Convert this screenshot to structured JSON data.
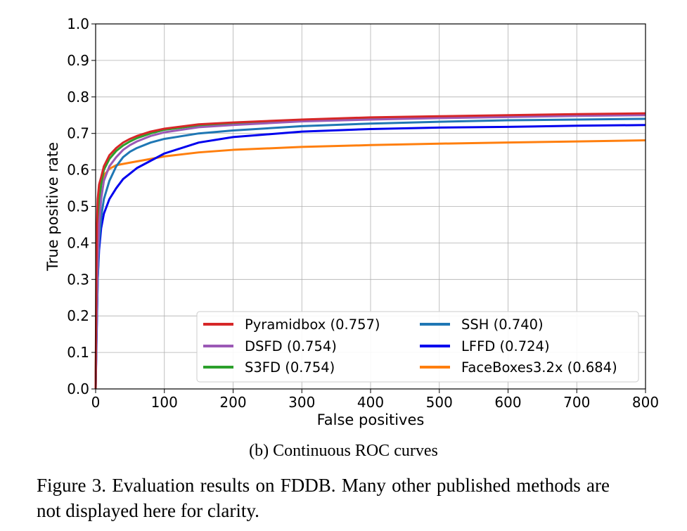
{
  "chart_data": {
    "type": "line",
    "title": "",
    "xlabel": "False positives",
    "ylabel": "True positive rate",
    "xlim": [
      0,
      800
    ],
    "ylim": [
      0,
      1.0
    ],
    "xticks": [
      0,
      100,
      200,
      300,
      400,
      500,
      600,
      700,
      800
    ],
    "xtick_labels": [
      "0",
      "100",
      "200",
      "300",
      "400",
      "500",
      "600",
      "700",
      "800"
    ],
    "yticks": [
      0.0,
      0.1,
      0.2,
      0.3,
      0.4,
      0.5,
      0.6,
      0.7,
      0.8,
      0.9,
      1.0
    ],
    "ytick_labels": [
      "0.0",
      "0.1",
      "0.2",
      "0.3",
      "0.4",
      "0.5",
      "0.6",
      "0.7",
      "0.8",
      "0.9",
      "1.0"
    ],
    "grid": true,
    "legend_position": "bottom-right",
    "series": [
      {
        "name": "Pyramidbox (0.757)",
        "color": "#d62728",
        "x": [
          0,
          1,
          2,
          3,
          5,
          8,
          12,
          20,
          30,
          40,
          50,
          60,
          80,
          100,
          150,
          200,
          300,
          400,
          500,
          600,
          700,
          800
        ],
        "y": [
          0.0,
          0.3,
          0.45,
          0.52,
          0.56,
          0.58,
          0.61,
          0.64,
          0.66,
          0.675,
          0.685,
          0.693,
          0.705,
          0.713,
          0.725,
          0.73,
          0.738,
          0.744,
          0.747,
          0.75,
          0.753,
          0.755
        ]
      },
      {
        "name": "DSFD (0.754)",
        "color": "#9b59b6",
        "x": [
          0,
          1,
          3,
          5,
          8,
          12,
          20,
          30,
          40,
          50,
          60,
          80,
          100,
          150,
          200,
          300,
          400,
          500,
          600,
          700,
          800
        ],
        "y": [
          0.0,
          0.15,
          0.35,
          0.45,
          0.52,
          0.57,
          0.61,
          0.635,
          0.655,
          0.668,
          0.678,
          0.693,
          0.703,
          0.717,
          0.723,
          0.733,
          0.738,
          0.742,
          0.745,
          0.748,
          0.75
        ]
      },
      {
        "name": "S3FD (0.754)",
        "color": "#2ca02c",
        "x": [
          0,
          1,
          3,
          5,
          8,
          12,
          20,
          30,
          40,
          50,
          60,
          80,
          100,
          150,
          200,
          300,
          400,
          500,
          600,
          700,
          800
        ],
        "y": [
          0.0,
          0.2,
          0.4,
          0.5,
          0.56,
          0.6,
          0.63,
          0.652,
          0.667,
          0.678,
          0.687,
          0.7,
          0.71,
          0.722,
          0.728,
          0.736,
          0.741,
          0.745,
          0.748,
          0.751,
          0.753
        ]
      },
      {
        "name": "SSH (0.740)",
        "color": "#1f77b4",
        "x": [
          0,
          1,
          3,
          5,
          8,
          12,
          20,
          30,
          40,
          50,
          60,
          80,
          100,
          150,
          200,
          300,
          400,
          500,
          600,
          700,
          800
        ],
        "y": [
          0.0,
          0.12,
          0.3,
          0.4,
          0.47,
          0.52,
          0.57,
          0.61,
          0.635,
          0.65,
          0.66,
          0.675,
          0.685,
          0.7,
          0.708,
          0.72,
          0.727,
          0.732,
          0.736,
          0.738,
          0.74
        ]
      },
      {
        "name": "LFFD (0.724)",
        "color": "#0000ee",
        "x": [
          0,
          1,
          3,
          5,
          8,
          12,
          20,
          30,
          40,
          50,
          60,
          80,
          100,
          150,
          200,
          300,
          400,
          500,
          600,
          700,
          800
        ],
        "y": [
          0.0,
          0.1,
          0.3,
          0.38,
          0.44,
          0.48,
          0.52,
          0.55,
          0.575,
          0.59,
          0.605,
          0.625,
          0.645,
          0.675,
          0.69,
          0.705,
          0.712,
          0.716,
          0.718,
          0.721,
          0.723
        ]
      },
      {
        "name": "FaceBoxes3.2x (0.684)",
        "color": "#ff7f0e",
        "x": [
          0,
          1,
          2,
          3,
          5,
          8,
          12,
          20,
          30,
          50,
          80,
          100,
          150,
          200,
          300,
          400,
          500,
          600,
          700,
          800
        ],
        "y": [
          0.0,
          0.2,
          0.35,
          0.45,
          0.52,
          0.56,
          0.585,
          0.603,
          0.613,
          0.62,
          0.63,
          0.637,
          0.648,
          0.655,
          0.663,
          0.668,
          0.672,
          0.675,
          0.678,
          0.681
        ]
      }
    ]
  },
  "subcaption": "(b) Continuous ROC curves",
  "caption": "Figure 3. Evaluation results on FDDB. Many other published methods are not displayed here for clarity."
}
